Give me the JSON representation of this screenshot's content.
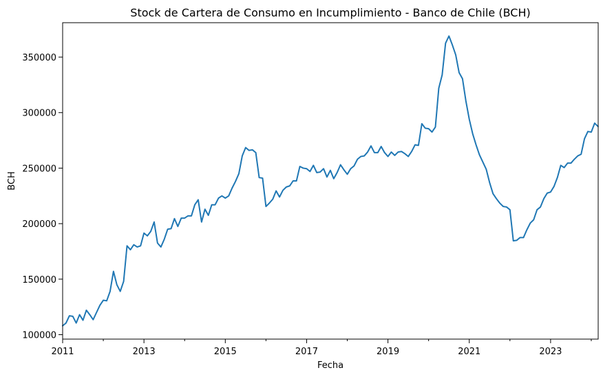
{
  "chart_data": {
    "type": "line",
    "title": "Stock de Cartera de Consumo en Incumplimiento - Banco de Chile (BCH)",
    "xlabel": "Fecha",
    "ylabel": "BCH",
    "x_range": [
      2011.0,
      2024.17
    ],
    "ylim": [
      96000,
      381000
    ],
    "grid": false,
    "legend": "none",
    "x_ticks": [
      {
        "value": 2011,
        "label": "2011"
      },
      {
        "value": 2013,
        "label": "2013"
      },
      {
        "value": 2015,
        "label": "2015"
      },
      {
        "value": 2017,
        "label": "2017"
      },
      {
        "value": 2019,
        "label": "2019"
      },
      {
        "value": 2021,
        "label": "2021"
      },
      {
        "value": 2023,
        "label": "2023"
      }
    ],
    "x_minor_ticks": [
      2012,
      2014,
      2016,
      2018,
      2020,
      2022,
      2024
    ],
    "y_ticks": [
      {
        "value": 100000,
        "label": "100000"
      },
      {
        "value": 150000,
        "label": "150000"
      },
      {
        "value": 200000,
        "label": "200000"
      },
      {
        "value": 250000,
        "label": "250000"
      },
      {
        "value": 300000,
        "label": "300000"
      },
      {
        "value": 350000,
        "label": "350000"
      }
    ],
    "series": [
      {
        "name": "BCH",
        "color": "#1f77b4",
        "start": [
          2011,
          1
        ],
        "values": [
          108000,
          110500,
          117000,
          116500,
          110500,
          118000,
          113000,
          122000,
          118000,
          113500,
          120000,
          126500,
          131000,
          130500,
          139000,
          157000,
          145000,
          139000,
          148000,
          180000,
          176500,
          181000,
          179000,
          180000,
          191500,
          189000,
          193000,
          201500,
          182500,
          179000,
          186000,
          195000,
          195500,
          204500,
          197500,
          205000,
          205000,
          207000,
          207000,
          217000,
          221500,
          201500,
          213000,
          207500,
          217000,
          217000,
          223000,
          225000,
          223000,
          225000,
          232000,
          238000,
          245000,
          261000,
          268500,
          266000,
          266500,
          264000,
          241500,
          241000,
          215500,
          218500,
          222000,
          229500,
          224000,
          230000,
          233000,
          234000,
          238500,
          238500,
          251500,
          250000,
          249500,
          247000,
          252500,
          246000,
          246500,
          249500,
          242000,
          248000,
          240500,
          246000,
          253000,
          248500,
          244500,
          249500,
          252000,
          258000,
          260500,
          261000,
          264500,
          270000,
          264000,
          264000,
          269500,
          264000,
          260500,
          264500,
          261500,
          264500,
          265000,
          263000,
          260500,
          265000,
          271000,
          270500,
          290000,
          286000,
          285500,
          282500,
          287000,
          322000,
          334000,
          362500,
          369000,
          361000,
          352000,
          336000,
          330500,
          310500,
          294000,
          281000,
          271000,
          262000,
          255500,
          249000,
          237000,
          227000,
          222500,
          218500,
          215500,
          215000,
          212500,
          184500,
          185000,
          187500,
          187500,
          194500,
          200500,
          203500,
          212500,
          215000,
          222500,
          227500,
          228500,
          233500,
          241500,
          252500,
          250500,
          254500,
          254500,
          258000,
          261000,
          262500,
          276500,
          283000,
          282500,
          290500,
          287500
        ]
      }
    ]
  }
}
